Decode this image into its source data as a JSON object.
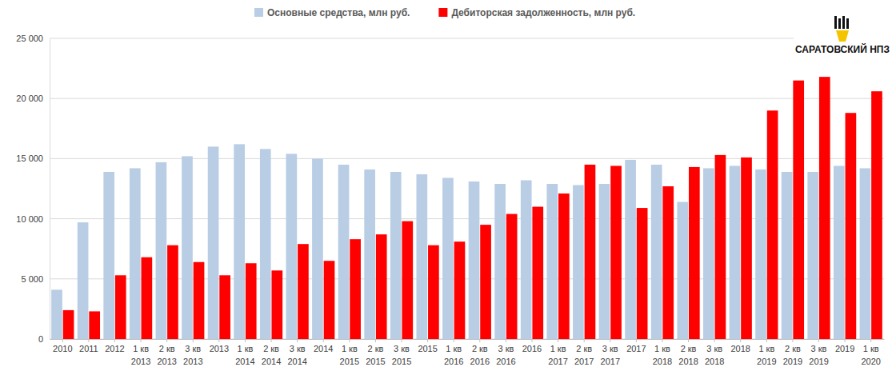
{
  "chart_data": {
    "type": "bar",
    "categories": [
      "2010",
      "2011",
      "2012",
      "1 кв 2013",
      "2 кв 2013",
      "3 кв 2013",
      "2013",
      "1 кв 2014",
      "2 кв 2014",
      "3 кв 2014",
      "2014",
      "1 кв 2015",
      "2 кв 2015",
      "3 кв 2015",
      "2015",
      "1 кв 2016",
      "2 кв 2016",
      "3 кв 2016",
      "2016",
      "1 кв 2017",
      "2 кв 2017",
      "3 кв 2017",
      "2017",
      "1 кв 2018",
      "2 кв 2018",
      "3 кв 2018",
      "2018",
      "1 кв 2019",
      "2 кв 2019",
      "3 кв 2019",
      "2019",
      "1 кв 2020"
    ],
    "series": [
      {
        "name": "Основные средства, млн руб.",
        "color": "#b9cde5",
        "values": [
          4100,
          9700,
          13900,
          14200,
          14700,
          15200,
          16000,
          16200,
          15800,
          15400,
          15000,
          14500,
          14100,
          13900,
          13700,
          13400,
          13100,
          12900,
          13200,
          12900,
          12800,
          12900,
          14900,
          14500,
          11400,
          14200,
          14400,
          14100,
          13900,
          13900,
          14400,
          14200
        ]
      },
      {
        "name": "Дебиторская задолженность, млн руб.",
        "color": "#ff0000",
        "values": [
          2400,
          2300,
          5300,
          6800,
          7800,
          6400,
          5300,
          6300,
          5700,
          7900,
          6500,
          8300,
          8700,
          9800,
          7800,
          8100,
          9500,
          10400,
          11000,
          12100,
          14500,
          14400,
          10900,
          12700,
          14300,
          15300,
          15100,
          19000,
          21500,
          21800,
          18800,
          20600
        ]
      }
    ],
    "ylim": [
      0,
      25000
    ],
    "yticks": [
      0,
      {
        "value": 5000,
        "label": "5 000"
      },
      {
        "value": 10000,
        "label": "10 000"
      },
      {
        "value": 15000,
        "label": "15 000"
      },
      {
        "value": 20000,
        "label": "20 000"
      },
      {
        "value": 25000,
        "label": "25 000"
      }
    ],
    "grid": true,
    "legend": "top",
    "annotations": [
      "САРАТОВСКИЙ НПЗ"
    ]
  }
}
